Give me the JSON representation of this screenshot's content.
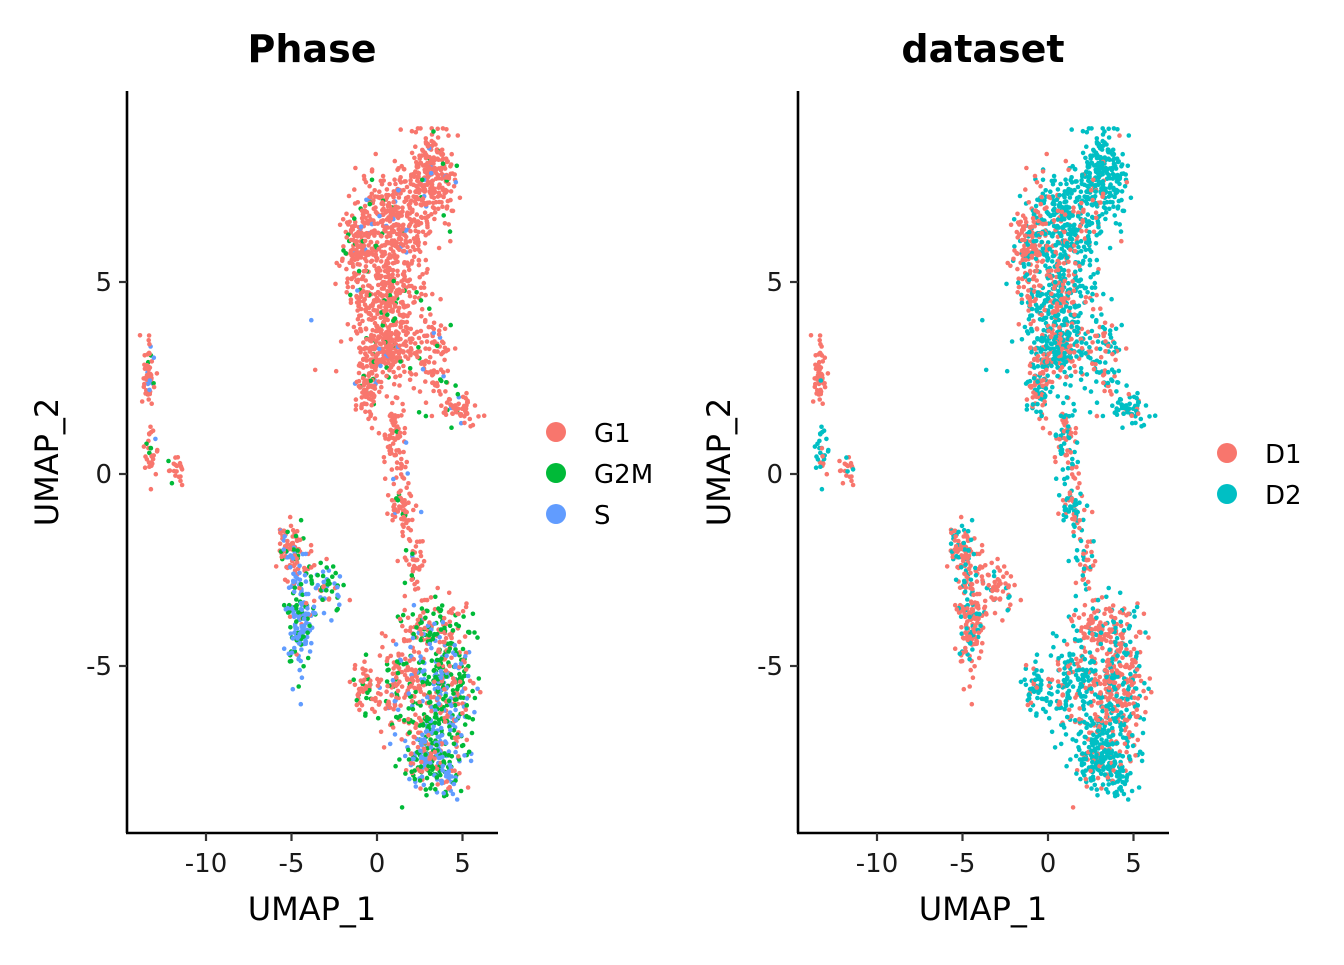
{
  "chart_data": [
    {
      "type": "scatter",
      "title": "Phase",
      "xlabel": "UMAP_1",
      "ylabel": "UMAP_2",
      "xlim": [
        -15,
        7
      ],
      "ylim": [
        -9.3,
        9.5
      ],
      "xticks": [
        "-10",
        "-5",
        "0",
        "5"
      ],
      "yticks": [
        "-5",
        "0",
        "5"
      ],
      "xtick_values": [
        -10,
        -5,
        0,
        5
      ],
      "ytick_values": [
        -5,
        0,
        5
      ],
      "grid": false,
      "legend_position": "right",
      "series": [
        {
          "name": "G1",
          "color": "#F8766D"
        },
        {
          "name": "G2M",
          "color": "#00BA38"
        },
        {
          "name": "S",
          "color": "#619CFF"
        }
      ]
    },
    {
      "type": "scatter",
      "title": "dataset",
      "xlabel": "UMAP_1",
      "ylabel": "UMAP_2",
      "xlim": [
        -15,
        7
      ],
      "ylim": [
        -9.3,
        9.5
      ],
      "xticks": [
        "-10",
        "-5",
        "0",
        "5"
      ],
      "yticks": [
        "-5",
        "0",
        "5"
      ],
      "xtick_values": [
        -10,
        -5,
        0,
        5
      ],
      "ytick_values": [
        -5,
        0,
        5
      ],
      "grid": false,
      "legend_position": "right",
      "series": [
        {
          "name": "D1",
          "color": "#F8766D"
        },
        {
          "name": "D2",
          "color": "#00BFC4"
        }
      ]
    }
  ]
}
